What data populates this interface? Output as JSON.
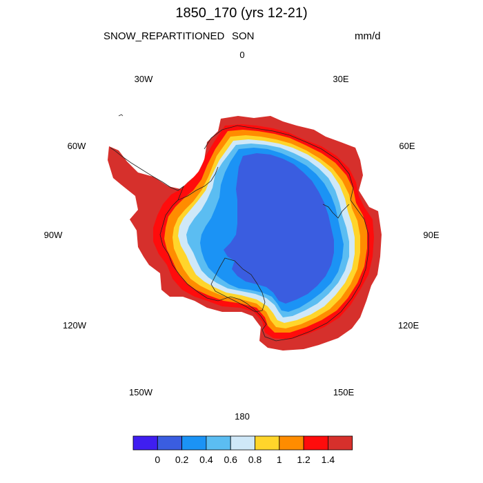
{
  "plot": {
    "title": "1850_170 (yrs 12-21)",
    "variable": "SNOW_REPARTITIONED",
    "season": "SON",
    "units": "mm/d"
  },
  "longitude_labels": {
    "n": "0",
    "e30": "30E",
    "e60": "60E",
    "e90": "90E",
    "e120": "120E",
    "e150": "150E",
    "s": "180",
    "w150": "150W",
    "w120": "120W",
    "w90": "90W",
    "w60": "60W",
    "w30": "30W"
  },
  "colorbar": {
    "labels": [
      "0",
      "0.2",
      "0.4",
      "0.6",
      "0.8",
      "1",
      "1.2",
      "1.4"
    ],
    "colors": [
      "#3f1ef0",
      "#3a5de0",
      "#1b93f5",
      "#5bbdf2",
      "#cfe8f8",
      "#ffd52b",
      "#ff8c00",
      "#ff0c0c",
      "#d6302c"
    ]
  },
  "chart_data": {
    "type": "heatmap",
    "projection": "south polar stereographic",
    "region": "Antarctica",
    "levels": [
      0,
      0.2,
      0.4,
      0.6,
      0.8,
      1,
      1.2,
      1.4
    ],
    "colors": [
      "#3f1ef0",
      "#3a5de0",
      "#1b93f5",
      "#5bbdf2",
      "#cfe8f8",
      "#ffd52b",
      "#ff8c00",
      "#ff0c0c",
      "#d6302c"
    ]
  }
}
